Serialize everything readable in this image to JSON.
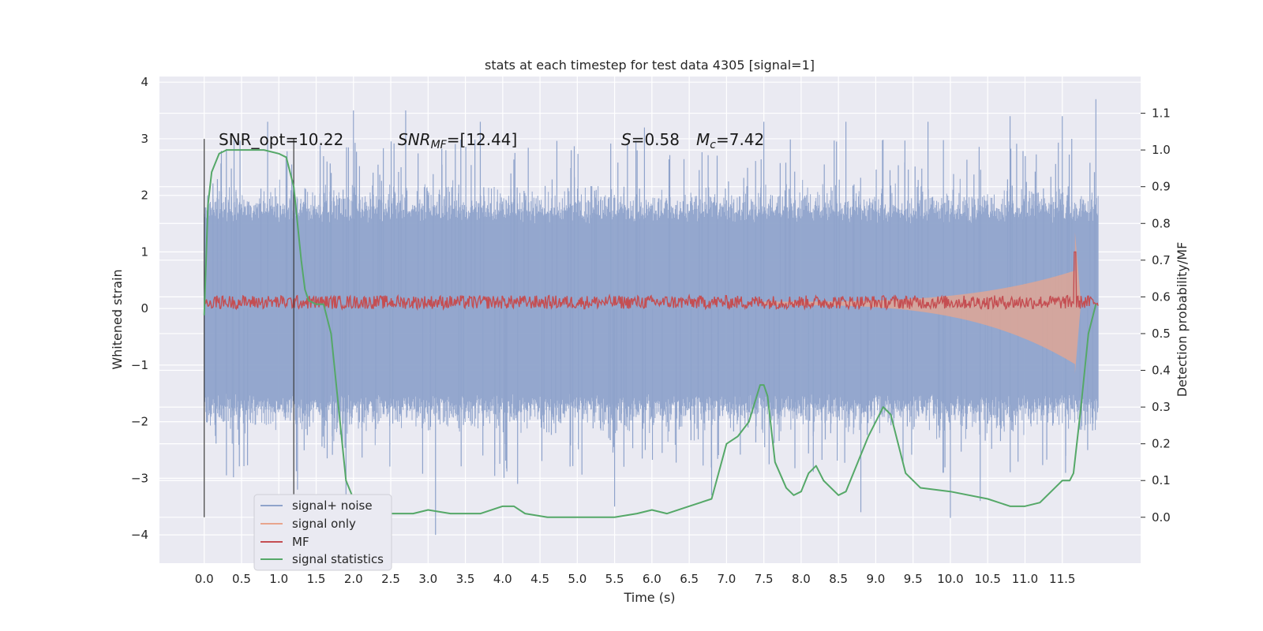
{
  "chart_data": {
    "type": "line",
    "title": "stats at each timestep for test data 4305 [signal=1]",
    "xlabel": "Time (s)",
    "ylabel_left": "Whitened strain",
    "ylabel_right": "Detection probability/MF",
    "xlim": [
      -0.6,
      12.55
    ],
    "ylim_left": [
      -4.5,
      4.1
    ],
    "ylim_right": [
      -0.125,
      1.2
    ],
    "x_ticks": [
      "0.0",
      "0.5",
      "1.0",
      "1.5",
      "2.0",
      "2.5",
      "3.0",
      "3.5",
      "4.0",
      "4.5",
      "5.0",
      "5.5",
      "6.0",
      "6.5",
      "7.0",
      "7.5",
      "8.0",
      "8.5",
      "9.0",
      "9.5",
      "10.0",
      "10.5",
      "11.0",
      "11.5"
    ],
    "y_left_ticks": [
      "4",
      "3",
      "2",
      "1",
      "0",
      "−1",
      "−2",
      "−3",
      "−4"
    ],
    "y_right_ticks": [
      "0.0",
      "0.1",
      "0.2",
      "0.3",
      "0.4",
      "0.5",
      "0.6",
      "0.7",
      "0.8",
      "0.9",
      "1.0",
      "1.1"
    ],
    "vlines": [
      0.0,
      1.2
    ],
    "annotations": {
      "snr_opt": "SNR_opt=10.22",
      "snr_mf_label": "SNR",
      "snr_mf_sub": "MF",
      "snr_mf_value": "=[12.44]",
      "s_label": "S",
      "s_value": "=0.58",
      "mc_label": "M",
      "mc_sub": "c",
      "mc_value": "=7.42"
    },
    "legend": [
      {
        "label": "signal+ noise",
        "color": "#8fa3cb"
      },
      {
        "label": "signal only",
        "color": "#e8a58d"
      },
      {
        "label": "MF",
        "color": "#c44e52"
      },
      {
        "label": "signal statistics",
        "color": "#55a868"
      }
    ],
    "series": [
      {
        "name": "signal+ noise",
        "axis": "left",
        "kind": "noise_band",
        "t_range": [
          0.0,
          11.98
        ],
        "core_amplitude": 1.5,
        "spike_peaks": [
          [
            0.4,
            3.0
          ],
          [
            0.85,
            3.3
          ],
          [
            1.25,
            -3.2
          ],
          [
            1.9,
            -3.5
          ],
          [
            2.0,
            3.5
          ],
          [
            2.7,
            3.5
          ],
          [
            3.1,
            -4.0
          ],
          [
            3.7,
            3.3
          ],
          [
            4.2,
            -3.1
          ],
          [
            5.5,
            -3.5
          ],
          [
            5.9,
            3.2
          ],
          [
            6.8,
            -3.3
          ],
          [
            7.5,
            3.3
          ],
          [
            8.6,
            3.3
          ],
          [
            8.8,
            -3.6
          ],
          [
            9.7,
            3.3
          ],
          [
            10.0,
            -3.7
          ],
          [
            10.4,
            -3.4
          ],
          [
            10.8,
            3.4
          ],
          [
            11.5,
            3.4
          ],
          [
            11.95,
            3.7
          ]
        ]
      },
      {
        "name": "signal only",
        "axis": "left",
        "kind": "chirp_envelope",
        "t_range": [
          7.5,
          11.75
        ],
        "peak_time": 11.67,
        "peak_max": 1.35,
        "peak_min": -1.15
      },
      {
        "name": "MF",
        "axis": "left",
        "kind": "noisy_line",
        "t_range": [
          0.0,
          11.98
        ],
        "baseline": 0.1,
        "spread": 0.12,
        "spike": [
          11.67,
          1.0
        ]
      },
      {
        "name": "signal statistics",
        "axis": "right",
        "kind": "line",
        "x": [
          0.0,
          0.05,
          0.1,
          0.2,
          0.3,
          0.5,
          0.8,
          1.0,
          1.1,
          1.2,
          1.25,
          1.3,
          1.35,
          1.4,
          1.5,
          1.6,
          1.7,
          1.8,
          1.9,
          2.0,
          2.2,
          2.5,
          2.8,
          3.0,
          3.3,
          3.7,
          4.0,
          4.15,
          4.3,
          4.6,
          5.0,
          5.5,
          5.8,
          6.0,
          6.2,
          6.5,
          6.8,
          7.0,
          7.15,
          7.3,
          7.45,
          7.5,
          7.55,
          7.65,
          7.8,
          7.9,
          8.0,
          8.1,
          8.2,
          8.3,
          8.5,
          8.6,
          8.7,
          8.9,
          9.1,
          9.2,
          9.4,
          9.6,
          10.0,
          10.5,
          10.8,
          11.0,
          11.2,
          11.4,
          11.5,
          11.6,
          11.65,
          11.75,
          11.85,
          11.95
        ],
        "y": [
          0.55,
          0.85,
          0.94,
          0.99,
          1.0,
          1.0,
          1.0,
          0.99,
          0.98,
          0.9,
          0.8,
          0.7,
          0.62,
          0.59,
          0.58,
          0.58,
          0.5,
          0.3,
          0.1,
          0.05,
          0.02,
          0.01,
          0.01,
          0.02,
          0.01,
          0.01,
          0.03,
          0.03,
          0.01,
          0.0,
          0.0,
          0.0,
          0.01,
          0.02,
          0.01,
          0.03,
          0.05,
          0.2,
          0.22,
          0.26,
          0.36,
          0.36,
          0.33,
          0.15,
          0.08,
          0.06,
          0.07,
          0.12,
          0.14,
          0.1,
          0.06,
          0.07,
          0.12,
          0.22,
          0.3,
          0.28,
          0.12,
          0.08,
          0.07,
          0.05,
          0.03,
          0.03,
          0.04,
          0.08,
          0.1,
          0.1,
          0.12,
          0.3,
          0.5,
          0.58
        ]
      }
    ]
  }
}
